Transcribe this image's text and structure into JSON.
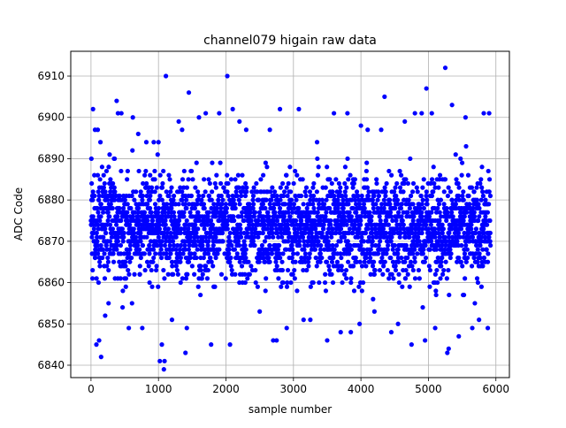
{
  "chart_data": {
    "type": "scatter",
    "title": "channel079 higain raw data",
    "xlabel": "sample number",
    "ylabel": "ADC Code",
    "xlim": [
      -300,
      6200
    ],
    "ylim": [
      6837,
      6916
    ],
    "x_ticks": [
      0,
      1000,
      2000,
      3000,
      4000,
      5000,
      6000
    ],
    "y_ticks": [
      6840,
      6850,
      6860,
      6870,
      6880,
      6890,
      6900,
      6910
    ],
    "grid": true,
    "marker_color": "#0000ff",
    "series": [
      {
        "points": [
          [
            30,
            6902
          ],
          [
            80,
            6845
          ],
          [
            120,
            6846
          ],
          [
            150,
            6842
          ],
          [
            60,
            6897
          ],
          [
            100,
            6897
          ],
          [
            140,
            6894
          ],
          [
            210,
            6852
          ],
          [
            260,
            6855
          ],
          [
            350,
            6890
          ],
          [
            380,
            6904
          ],
          [
            400,
            6901
          ],
          [
            450,
            6901
          ],
          [
            560,
            6849
          ],
          [
            620,
            6900
          ],
          [
            700,
            6896
          ],
          [
            760,
            6849
          ],
          [
            820,
            6894
          ],
          [
            930,
            6894
          ],
          [
            1000,
            6894
          ],
          [
            1020,
            6841
          ],
          [
            1050,
            6845
          ],
          [
            1080,
            6839
          ],
          [
            1090,
            6841
          ],
          [
            1110,
            6910
          ],
          [
            1200,
            6851
          ],
          [
            1300,
            6899
          ],
          [
            1350,
            6897
          ],
          [
            1400,
            6843
          ],
          [
            1420,
            6849
          ],
          [
            1450,
            6906
          ],
          [
            1600,
            6900
          ],
          [
            1700,
            6901
          ],
          [
            1780,
            6845
          ],
          [
            1900,
            6901
          ],
          [
            2020,
            6910
          ],
          [
            2060,
            6845
          ],
          [
            2100,
            6902
          ],
          [
            2200,
            6899
          ],
          [
            2300,
            6897
          ],
          [
            2500,
            6853
          ],
          [
            2650,
            6897
          ],
          [
            2700,
            6846
          ],
          [
            2750,
            6846
          ],
          [
            2800,
            6902
          ],
          [
            2900,
            6849
          ],
          [
            3080,
            6902
          ],
          [
            3150,
            6851
          ],
          [
            3250,
            6851
          ],
          [
            3350,
            6894
          ],
          [
            3500,
            6846
          ],
          [
            3600,
            6901
          ],
          [
            3700,
            6848
          ],
          [
            3800,
            6901
          ],
          [
            3850,
            6848
          ],
          [
            3980,
            6850
          ],
          [
            4000,
            6898
          ],
          [
            4100,
            6897
          ],
          [
            4200,
            6853
          ],
          [
            4300,
            6897
          ],
          [
            4350,
            6905
          ],
          [
            4450,
            6848
          ],
          [
            4550,
            6850
          ],
          [
            4650,
            6899
          ],
          [
            4750,
            6845
          ],
          [
            4800,
            6901
          ],
          [
            4900,
            6901
          ],
          [
            4950,
            6846
          ],
          [
            4970,
            6907
          ],
          [
            5050,
            6901
          ],
          [
            5100,
            6849
          ],
          [
            5250,
            6912
          ],
          [
            5280,
            6843
          ],
          [
            5300,
            6844
          ],
          [
            5350,
            6903
          ],
          [
            5450,
            6847
          ],
          [
            5550,
            6900
          ],
          [
            5650,
            6849
          ],
          [
            5750,
            6851
          ],
          [
            5820,
            6901
          ],
          [
            5900,
            6901
          ],
          [
            5880,
            6849
          ]
        ]
      }
    ]
  }
}
